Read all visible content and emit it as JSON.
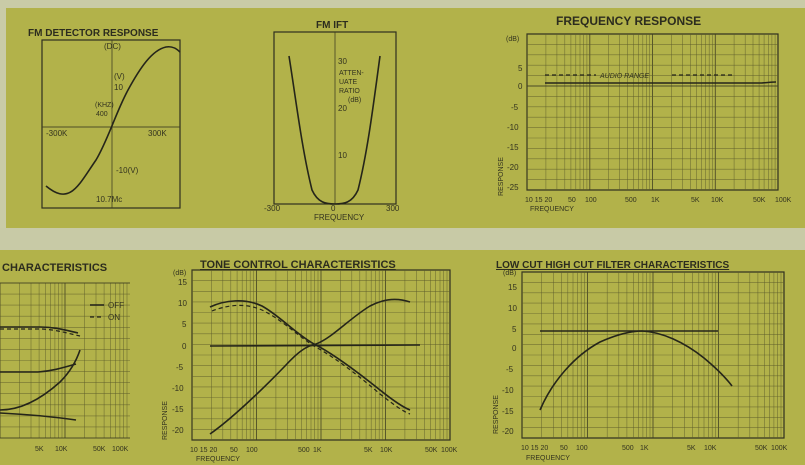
{
  "chart_data": [
    {
      "type": "line",
      "title": "FM DETECTOR RESPONSE",
      "annotations": [
        "(DC)",
        "(V)",
        "10",
        "(KHZ)",
        "400",
        "-10(V)",
        "10.7Mc"
      ],
      "x_tick_labels": [
        "-300K",
        "300K"
      ],
      "xlim": [
        -400,
        400
      ],
      "ylim": [
        -14,
        14
      ],
      "series": [
        {
          "x": [
            -400,
            -330,
            -250,
            -150,
            -50,
            0,
            50,
            150,
            250,
            330,
            400
          ],
          "y": [
            -9,
            -11,
            -9,
            -4,
            -1,
            0,
            1,
            4,
            9,
            11,
            9
          ]
        }
      ]
    },
    {
      "type": "line",
      "title": "FM IFT",
      "ylabel_text": [
        "ATTEN-",
        "UATE",
        "RATIO",
        "(dB)"
      ],
      "xlabel": "FREQUENCY",
      "x_tick_labels": [
        "-300",
        "0",
        "300"
      ],
      "y_tick_labels": [
        "30",
        "20",
        "10"
      ],
      "xlim": [
        -400,
        400
      ],
      "ylim": [
        0,
        35
      ],
      "series": [
        {
          "x": [
            -300,
            -250,
            -200,
            -150,
            -100,
            -50,
            0,
            50,
            100,
            150,
            200,
            250,
            300
          ],
          "y": [
            28,
            22,
            15,
            8,
            3,
            0.5,
            0,
            0.5,
            3,
            8,
            15,
            22,
            28
          ]
        }
      ]
    },
    {
      "type": "line",
      "title": "FREQUENCY RESPONSE",
      "ylabel": "RESPONSE",
      "xlabel": "FREQUENCY",
      "y_unit": "(dB)",
      "annotation": "AUDIO RANGE",
      "x_tick_labels": [
        "10 15 20",
        "50",
        "100",
        "500",
        "1K",
        "5K",
        "10K",
        "50K",
        "100K"
      ],
      "y_tick_labels": [
        "5",
        "0",
        "-5",
        "-10",
        "-15",
        "-20",
        "-25"
      ],
      "ylim": [
        -25,
        5
      ],
      "series": [
        {
          "x": [
            10,
            20,
            100,
            1000,
            10000,
            50000,
            100000
          ],
          "y": [
            0,
            0,
            0,
            0,
            0,
            0,
            0
          ]
        }
      ]
    },
    {
      "type": "line",
      "title": "CHARACTERISTICS",
      "legend": [
        "OFF",
        "ON"
      ],
      "x_tick_labels": [
        "5K",
        "10K",
        "50K",
        "100K"
      ]
    },
    {
      "type": "line",
      "title": "TONE CONTROL CHARACTERISTICS",
      "ylabel": "RESPONSE",
      "xlabel": "FREQUENCY",
      "y_unit": "(dB)",
      "x_tick_labels": [
        "10 15 20",
        "50",
        "100",
        "500",
        "1K",
        "5K",
        "10K",
        "50K",
        "100K"
      ],
      "y_tick_labels": [
        "15",
        "10",
        "5",
        "0",
        "-5",
        "-10",
        "-15",
        "-20"
      ],
      "ylim": [
        -20,
        15
      ],
      "series": [
        {
          "x": [
            10,
            30,
            100,
            500,
            1000,
            5000,
            20000
          ],
          "y": [
            10,
            10,
            6,
            1,
            0,
            -3,
            -10
          ]
        },
        {
          "x": [
            10,
            30,
            100,
            500,
            1000,
            5000,
            20000
          ],
          "y": [
            -20,
            -14,
            -7,
            -1,
            0,
            3,
            10
          ]
        },
        {
          "x": [
            10,
            100,
            1000,
            10000,
            20000
          ],
          "y": [
            0,
            0,
            0,
            0,
            0
          ]
        }
      ]
    },
    {
      "type": "line",
      "title": "LOW CUT HIGH CUT FILTER CHARACTERISTICS",
      "ylabel": "RESPONSE",
      "xlabel": "FREQUENCY",
      "y_unit": "(dB)",
      "x_tick_labels": [
        "10 15 20",
        "50",
        "100",
        "500",
        "1K",
        "5K",
        "10K",
        "50K",
        "100K"
      ],
      "y_tick_labels": [
        "15",
        "10",
        "5",
        "0",
        "-5",
        "-10",
        "-15",
        "-20"
      ],
      "ylim": [
        -20,
        15
      ],
      "series": [
        {
          "x": [
            10,
            30,
            100,
            300,
            1000,
            3000,
            20000
          ],
          "y": [
            -14,
            -8,
            -3,
            -0.5,
            0,
            -1,
            -9
          ]
        },
        {
          "x": [
            20,
            100,
            1000,
            10000,
            20000
          ],
          "y": [
            0,
            0,
            0,
            0,
            0
          ]
        }
      ]
    }
  ]
}
